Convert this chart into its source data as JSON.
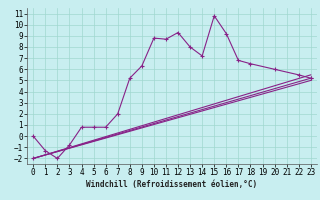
{
  "xlabel": "Windchill (Refroidissement éolien,°C)",
  "bg_color": "#c8eef0",
  "grid_color": "#a0d8d0",
  "line_color": "#882288",
  "x_values": [
    0,
    1,
    2,
    3,
    4,
    5,
    6,
    7,
    8,
    9,
    10,
    11,
    12,
    13,
    14,
    15,
    16,
    17,
    18,
    19,
    20,
    21,
    22,
    23
  ],
  "line1": [
    0.0,
    -1.3,
    -2.0,
    -0.8,
    0.8,
    0.8,
    0.8,
    2.0,
    5.2,
    6.3,
    8.8,
    8.7,
    9.3,
    8.0,
    7.2,
    10.8,
    9.2,
    6.8,
    6.5,
    null,
    6.0,
    null,
    5.5,
    5.2
  ],
  "line2_x": [
    0,
    23
  ],
  "line2_y": [
    -2.0,
    5.2
  ],
  "line3_x": [
    0,
    23
  ],
  "line3_y": [
    -2.0,
    5.5
  ],
  "line4_x": [
    0,
    23
  ],
  "line4_y": [
    -2.0,
    5.0
  ],
  "ylim": [
    -2.5,
    11.5
  ],
  "xlim": [
    -0.5,
    23.5
  ],
  "yticks": [
    -2,
    -1,
    0,
    1,
    2,
    3,
    4,
    5,
    6,
    7,
    8,
    9,
    10,
    11
  ],
  "xticks": [
    0,
    1,
    2,
    3,
    4,
    5,
    6,
    7,
    8,
    9,
    10,
    11,
    12,
    13,
    14,
    15,
    16,
    17,
    18,
    19,
    20,
    21,
    22,
    23
  ],
  "tick_fontsize": 5.5,
  "xlabel_fontsize": 5.5,
  "lw": 0.8,
  "marker_size": 2.5
}
